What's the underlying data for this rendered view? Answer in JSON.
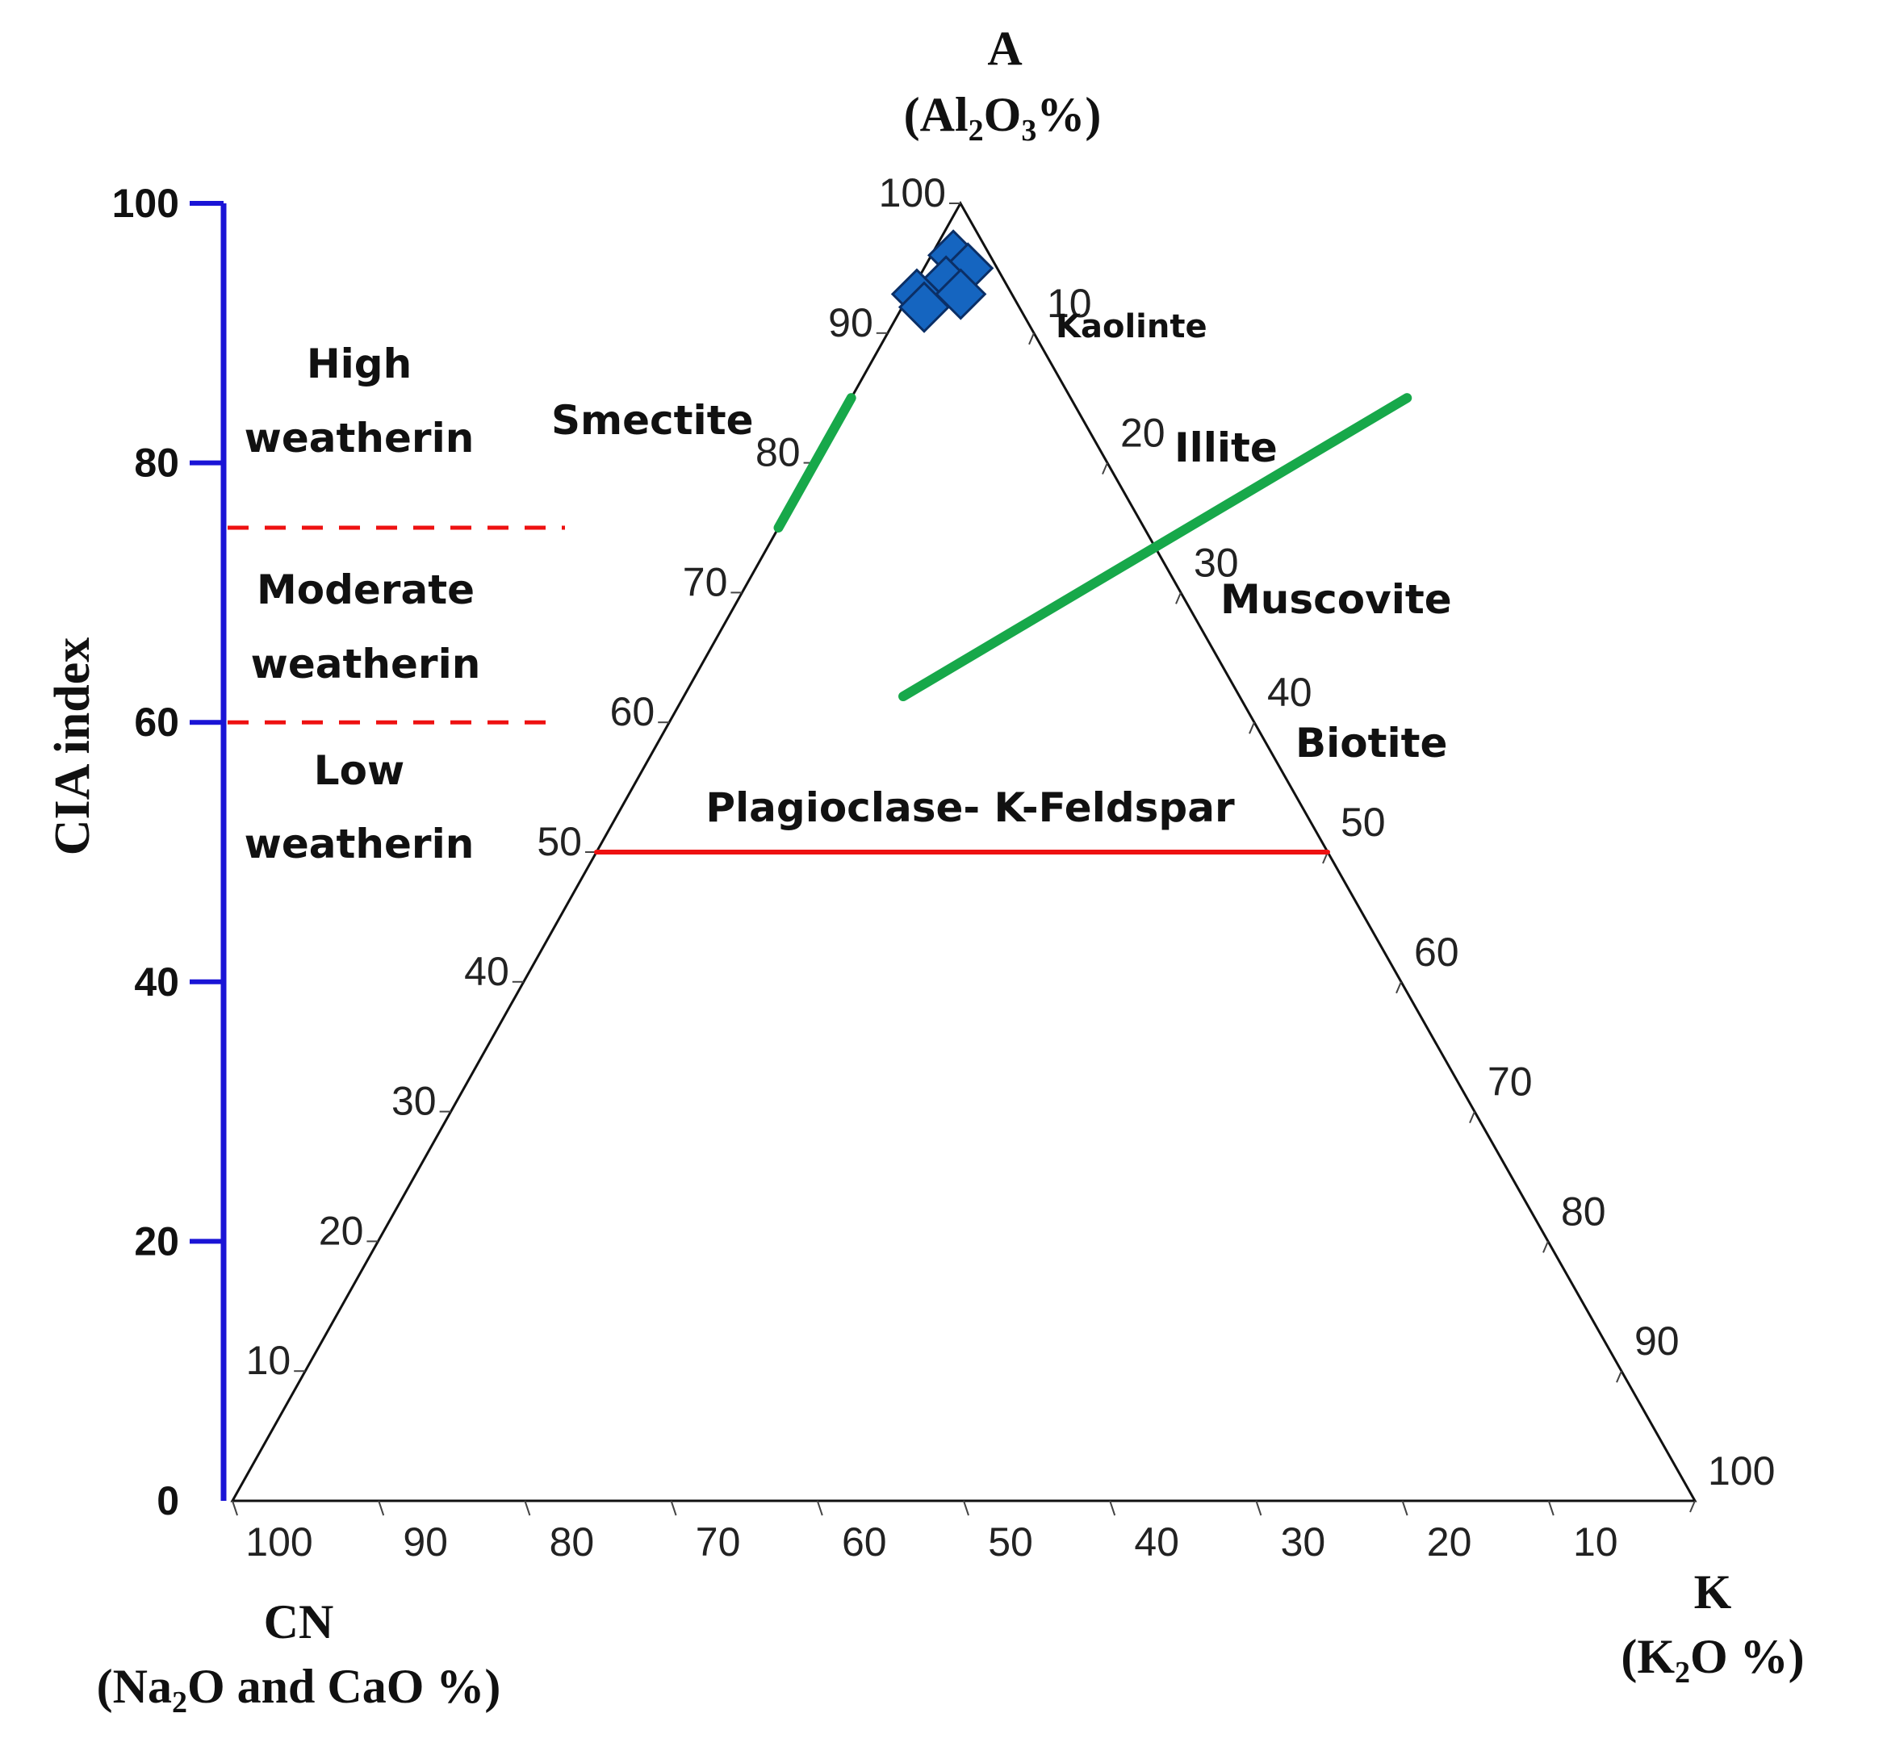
{
  "chart_data": {
    "type": "scatter",
    "subtype": "ternary A-CN-K diagram with CIA index scale",
    "vertices": {
      "A": {
        "label": "A",
        "sublabel": [
          "(Al",
          "2",
          "O",
          "3",
          "%)"
        ]
      },
      "CN": {
        "label": "CN",
        "sublabel": [
          "(Na",
          "2",
          "O and CaO %)"
        ]
      },
      "K": {
        "label": "K",
        "sublabel": [
          "(K",
          "2",
          "O %)"
        ]
      }
    },
    "left_axis_ticks": [
      "10",
      "20",
      "30",
      "40",
      "50",
      "60",
      "70",
      "80",
      "90",
      "100"
    ],
    "right_axis_ticks": [
      "10",
      "20",
      "30",
      "40",
      "50",
      "60",
      "70",
      "80",
      "90",
      "100"
    ],
    "bottom_axis_ticks": [
      "100",
      "90",
      "80",
      "70",
      "60",
      "50",
      "40",
      "30",
      "20",
      "10"
    ],
    "cia_axis": {
      "label": "CIA index",
      "range": [
        0,
        100
      ],
      "ticks": [
        "0",
        "20",
        "40",
        "60",
        "80",
        "100"
      ],
      "color": "#1a14d6",
      "thresholds": [
        60,
        75
      ]
    },
    "zones": [
      {
        "lines": [
          "High",
          "weatherin"
        ]
      },
      {
        "lines": [
          "Moderate",
          "weatherin"
        ]
      },
      {
        "lines": [
          "Low",
          "weatherin"
        ]
      }
    ],
    "mineral_lines": [
      {
        "name": "Smectite",
        "color": "#17a84a",
        "A": [
          75,
          85
        ],
        "K": [
          0,
          0
        ]
      },
      {
        "name": "Illite / Muscovite",
        "color": "#17a84a",
        "A": [
          62,
          85
        ],
        "K": [
          15,
          38
        ]
      },
      {
        "name": "Plagioclase- K-Feldspar",
        "color": "#ee1111",
        "A": [
          50,
          50
        ],
        "K": [
          0,
          50
        ]
      }
    ],
    "mineral_labels": [
      "Kaolinte",
      "Smectite",
      "Illite",
      "Muscovite",
      "Biotite",
      "Plagioclase- K-Feldspar"
    ],
    "samples": {
      "marker": "diamond",
      "color": "#1565c0",
      "points": [
        {
          "A": 96,
          "K": 1.5
        },
        {
          "A": 95,
          "K": 3
        },
        {
          "A": 94,
          "K": 2
        },
        {
          "A": 93,
          "K": 0.5
        },
        {
          "A": 93,
          "K": 3.5
        },
        {
          "A": 92,
          "K": 1.5
        }
      ]
    }
  }
}
